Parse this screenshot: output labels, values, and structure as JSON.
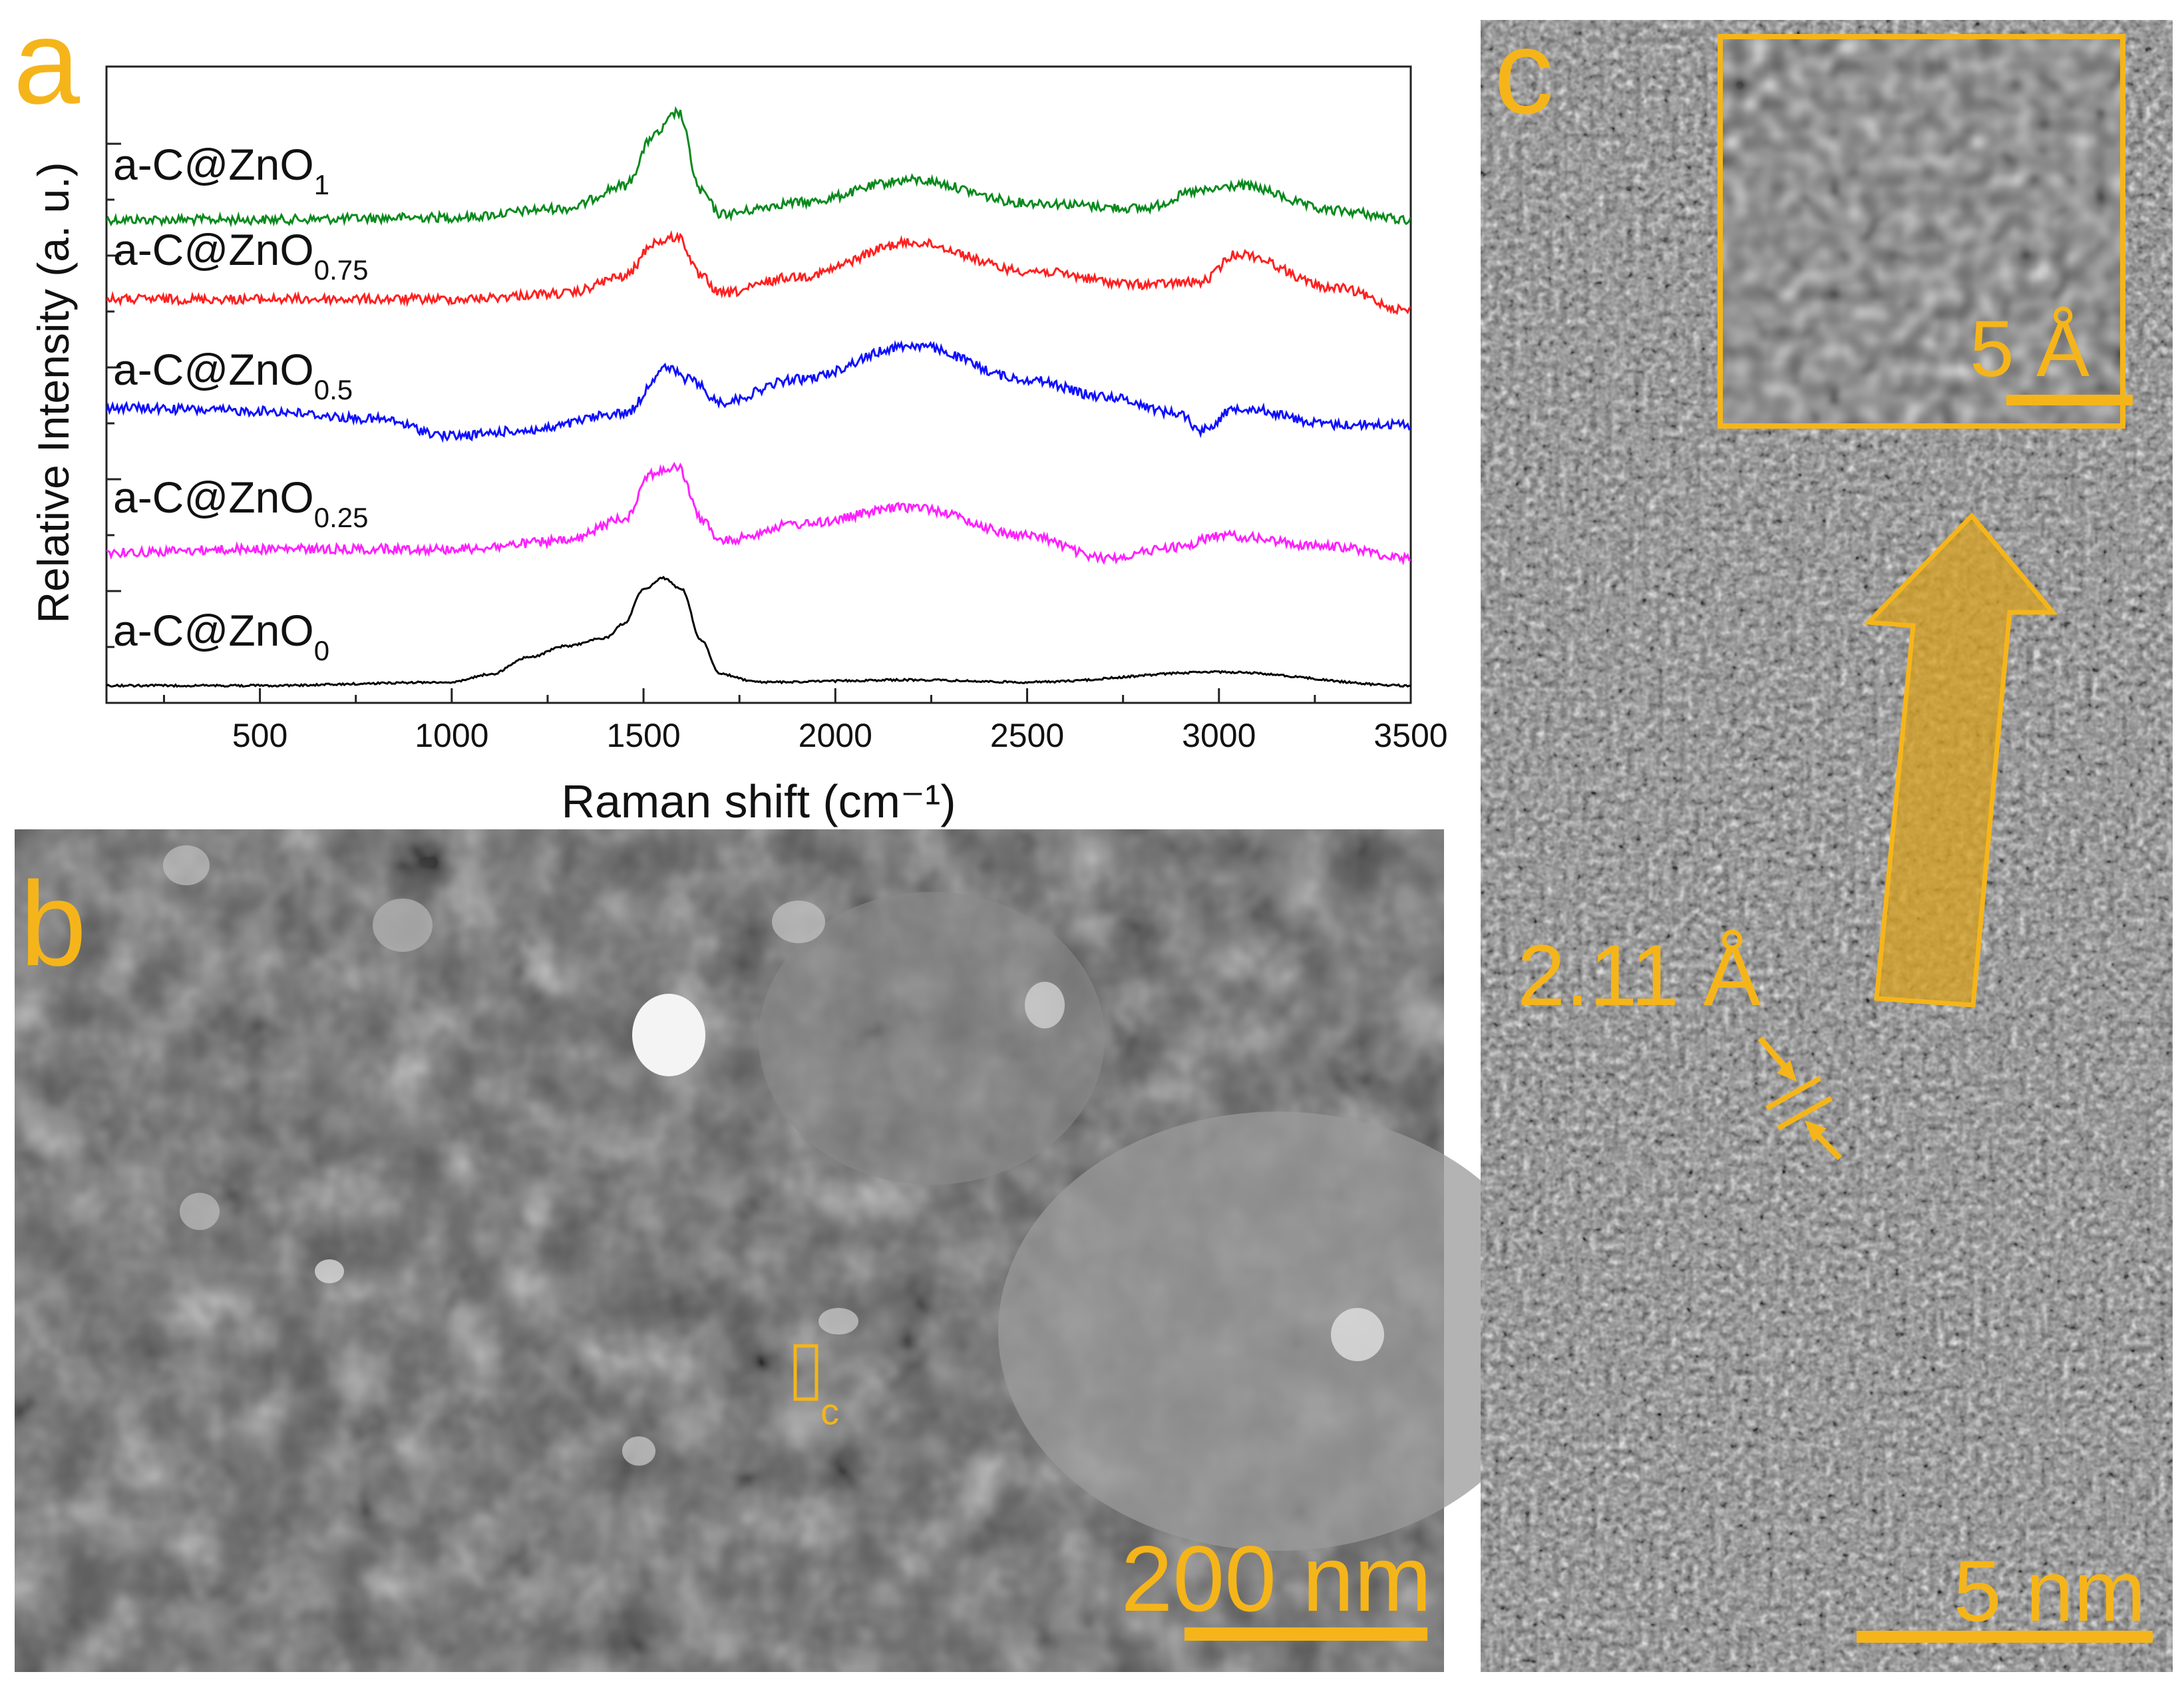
{
  "panels": {
    "a": {
      "letter": "a"
    },
    "b": {
      "letter": "b",
      "scale_bar": "200 nm",
      "marker_label": "c"
    },
    "c": {
      "letter": "c",
      "scale_bar": "5 nm",
      "inset_scale_bar": "5 Å",
      "d_spacing": "2.11 Å"
    }
  },
  "colors": {
    "accent": "#f5b51a",
    "green": "#0a8a1e",
    "red": "#ff2020",
    "blue": "#1010ff",
    "magenta": "#ff20ff",
    "black": "#000000"
  },
  "chart_data": {
    "type": "line",
    "xlabel": "Raman shift (cm⁻¹)",
    "ylabel": "Relative Intensity (a. u.)",
    "xlim": [
      100,
      3500
    ],
    "xticks": [
      500,
      1000,
      1500,
      2000,
      2500,
      3000,
      3500
    ],
    "y_tick_labels": "none",
    "grid": false,
    "series": [
      {
        "name": "a-C@ZnO",
        "subscript": "1",
        "color": "#0a8a1e",
        "offset": 4,
        "x": [
          100,
          500,
          1000,
          1300,
          1450,
          1530,
          1590,
          1650,
          1700,
          1900,
          2200,
          2500,
          2800,
          2950,
          3050,
          3300,
          3500
        ],
        "y": [
          0.0,
          0.0,
          0.02,
          0.1,
          0.3,
          0.75,
          0.95,
          0.25,
          0.05,
          0.15,
          0.35,
          0.15,
          0.1,
          0.25,
          0.3,
          0.08,
          0.0
        ]
      },
      {
        "name": "a-C@ZnO",
        "subscript": "0.75",
        "color": "#ff2020",
        "offset": 3,
        "x": [
          100,
          500,
          1000,
          1300,
          1450,
          1530,
          1590,
          1650,
          1700,
          1900,
          2200,
          2500,
          2800,
          2950,
          3050,
          3300,
          3500
        ],
        "y": [
          0.05,
          0.05,
          0.05,
          0.1,
          0.25,
          0.55,
          0.6,
          0.25,
          0.1,
          0.25,
          0.55,
          0.3,
          0.18,
          0.2,
          0.45,
          0.15,
          -0.05
        ]
      },
      {
        "name": "a-C@ZnO",
        "subscript": "0.5",
        "color": "#1010ff",
        "offset": 2,
        "x": [
          100,
          500,
          800,
          1000,
          1200,
          1450,
          1560,
          1620,
          1700,
          1900,
          2200,
          2500,
          2700,
          2900,
          2950,
          3050,
          3300,
          3500
        ],
        "y": [
          0.15,
          0.12,
          0.05,
          -0.1,
          -0.05,
          0.1,
          0.5,
          0.4,
          0.2,
          0.4,
          0.7,
          0.4,
          0.25,
          0.1,
          -0.05,
          0.15,
          0.0,
          0.0
        ]
      },
      {
        "name": "a-C@ZnO",
        "subscript": "0.25",
        "color": "#ff20ff",
        "offset": 1,
        "x": [
          100,
          500,
          1000,
          1300,
          1450,
          1520,
          1590,
          1650,
          1700,
          1900,
          2200,
          2500,
          2700,
          2900,
          3000,
          3300,
          3500
        ],
        "y": [
          0.0,
          0.03,
          0.03,
          0.1,
          0.3,
          0.7,
          0.75,
          0.3,
          0.1,
          0.25,
          0.4,
          0.15,
          -0.05,
          0.05,
          0.15,
          0.05,
          -0.05
        ]
      },
      {
        "name": "a-C@ZnO",
        "subscript": "0",
        "color": "#000000",
        "offset": 0,
        "x": [
          100,
          500,
          1000,
          1100,
          1200,
          1300,
          1400,
          1450,
          1500,
          1550,
          1600,
          1650,
          1700,
          1800,
          2200,
          2500,
          3000,
          3500
        ],
        "y": [
          0.0,
          0.0,
          0.03,
          0.1,
          0.25,
          0.35,
          0.42,
          0.55,
          0.85,
          0.95,
          0.85,
          0.4,
          0.1,
          0.03,
          0.05,
          0.03,
          0.12,
          0.0
        ]
      }
    ]
  }
}
